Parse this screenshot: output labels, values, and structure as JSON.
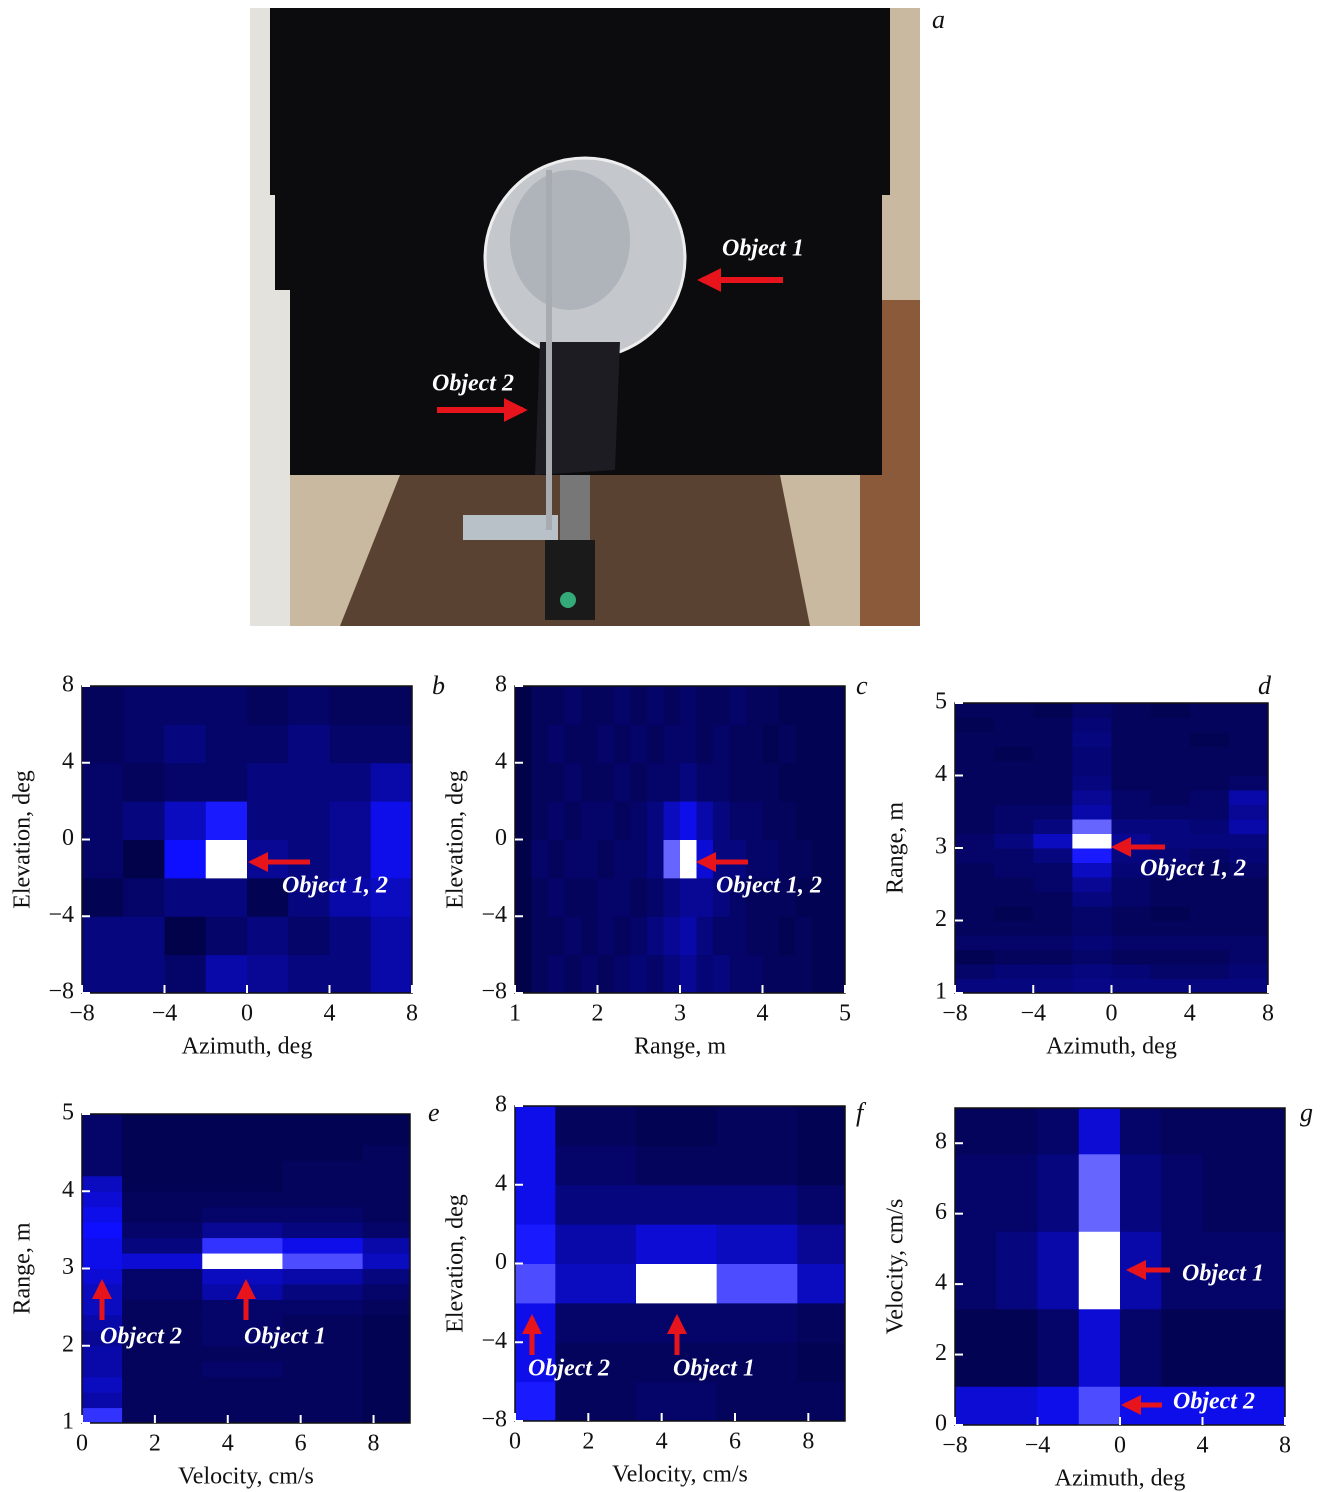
{
  "photo": {
    "label": "a",
    "annotations": [
      "Object 1",
      "Object 2"
    ]
  },
  "chart_data": [
    {
      "type": "heatmap",
      "label": "b",
      "x_label": "Azimuth, deg",
      "y_label": "Elevation, deg",
      "annotations": [
        "Object 1, 2"
      ],
      "xlim": [
        -8,
        8
      ],
      "ylim": [
        -8,
        8
      ],
      "xticks": [
        {
          "value": -8,
          "label": "−8"
        },
        {
          "value": -4,
          "label": "−4"
        },
        0,
        4,
        8
      ],
      "yticks": [
        {
          "value": -8,
          "label": "−8"
        },
        {
          "value": -4,
          "label": "−4"
        },
        0,
        4,
        8
      ],
      "x_edges": [
        -8,
        -6,
        -4,
        -2,
        0,
        2,
        4,
        6,
        8
      ],
      "y_edges": [
        -8,
        -6,
        -4,
        -2,
        0,
        2,
        4,
        6,
        8
      ],
      "z": [
        [
          0.2,
          0.2,
          0.15,
          0.3,
          0.25,
          0.2,
          0.2,
          0.3
        ],
        [
          0.2,
          0.2,
          0.08,
          0.15,
          0.2,
          0.15,
          0.2,
          0.3
        ],
        [
          0.1,
          0.15,
          0.2,
          0.2,
          0.1,
          0.2,
          0.3,
          0.35
        ],
        [
          0.15,
          0.08,
          0.5,
          1.0,
          0.25,
          0.2,
          0.25,
          0.45
        ],
        [
          0.15,
          0.2,
          0.35,
          0.55,
          0.2,
          0.2,
          0.25,
          0.45
        ],
        [
          0.15,
          0.12,
          0.15,
          0.15,
          0.2,
          0.2,
          0.2,
          0.3
        ],
        [
          0.12,
          0.15,
          0.2,
          0.15,
          0.15,
          0.2,
          0.15,
          0.15
        ],
        [
          0.12,
          0.15,
          0.15,
          0.15,
          0.12,
          0.15,
          0.12,
          0.12
        ]
      ]
    },
    {
      "type": "heatmap",
      "label": "c",
      "x_label": "Range, m",
      "y_label": "Elevation, deg",
      "annotations": [
        "Object 1, 2"
      ],
      "xlim": [
        1,
        5
      ],
      "ylim": [
        -8,
        8
      ],
      "xticks": [
        1,
        2,
        3,
        4,
        5
      ],
      "yticks": [
        {
          "value": -8,
          "label": "−8"
        },
        {
          "value": -4,
          "label": "−4"
        },
        0,
        4,
        8
      ],
      "x_edges": [
        1,
        1.2,
        1.4,
        1.6,
        1.8,
        2,
        2.2,
        2.4,
        2.6,
        2.8,
        3,
        3.2,
        3.4,
        3.6,
        3.8,
        4,
        4.2,
        4.4,
        4.6,
        4.8,
        5
      ],
      "y_edges": [
        -8,
        -6,
        -4,
        -2,
        0,
        2,
        4,
        6,
        8
      ],
      "z": [
        [
          0.08,
          0.12,
          0.15,
          0.12,
          0.15,
          0.12,
          0.15,
          0.18,
          0.15,
          0.2,
          0.25,
          0.18,
          0.2,
          0.15,
          0.15,
          0.12,
          0.12,
          0.12,
          0.1,
          0.1
        ],
        [
          0.08,
          0.12,
          0.12,
          0.15,
          0.12,
          0.15,
          0.12,
          0.15,
          0.2,
          0.25,
          0.3,
          0.2,
          0.15,
          0.15,
          0.12,
          0.12,
          0.1,
          0.12,
          0.1,
          0.1
        ],
        [
          0.08,
          0.12,
          0.15,
          0.12,
          0.12,
          0.15,
          0.15,
          0.12,
          0.15,
          0.2,
          0.25,
          0.25,
          0.2,
          0.15,
          0.12,
          0.12,
          0.12,
          0.1,
          0.1,
          0.1
        ],
        [
          0.08,
          0.15,
          0.12,
          0.15,
          0.15,
          0.12,
          0.15,
          0.15,
          0.2,
          0.7,
          1.0,
          0.4,
          0.2,
          0.2,
          0.15,
          0.15,
          0.12,
          0.12,
          0.1,
          0.1
        ],
        [
          0.08,
          0.12,
          0.15,
          0.12,
          0.15,
          0.15,
          0.12,
          0.15,
          0.2,
          0.35,
          0.45,
          0.3,
          0.2,
          0.15,
          0.15,
          0.12,
          0.12,
          0.1,
          0.1,
          0.1
        ],
        [
          0.08,
          0.12,
          0.12,
          0.15,
          0.12,
          0.12,
          0.15,
          0.12,
          0.15,
          0.15,
          0.2,
          0.15,
          0.15,
          0.12,
          0.12,
          0.12,
          0.1,
          0.1,
          0.1,
          0.1
        ],
        [
          0.08,
          0.12,
          0.15,
          0.12,
          0.12,
          0.15,
          0.12,
          0.15,
          0.12,
          0.15,
          0.15,
          0.12,
          0.15,
          0.12,
          0.12,
          0.1,
          0.12,
          0.1,
          0.1,
          0.1
        ],
        [
          0.08,
          0.12,
          0.12,
          0.15,
          0.12,
          0.12,
          0.15,
          0.12,
          0.15,
          0.12,
          0.15,
          0.12,
          0.12,
          0.15,
          0.12,
          0.12,
          0.1,
          0.1,
          0.1,
          0.1
        ]
      ]
    },
    {
      "type": "heatmap",
      "label": "d",
      "x_label": "Azimuth, deg",
      "y_label": "Range, m",
      "annotations": [
        "Object 1, 2"
      ],
      "xlim": [
        -8,
        8
      ],
      "ylim": [
        1,
        5
      ],
      "xticks": [
        {
          "value": -8,
          "label": "−8"
        },
        {
          "value": -4,
          "label": "−4"
        },
        0,
        4,
        8
      ],
      "yticks": [
        1,
        2,
        3,
        4,
        5
      ],
      "x_edges": [
        -8,
        -6,
        -4,
        -2,
        0,
        2,
        4,
        6,
        8
      ],
      "y_edges": [
        1,
        1.2,
        1.4,
        1.6,
        1.8,
        2,
        2.2,
        2.4,
        2.6,
        2.8,
        3,
        3.2,
        3.4,
        3.6,
        3.8,
        4,
        4.2,
        4.4,
        4.6,
        4.8,
        5
      ],
      "z": [
        [
          0.2,
          0.2,
          0.2,
          0.22,
          0.2,
          0.2,
          0.2,
          0.2
        ],
        [
          0.15,
          0.18,
          0.18,
          0.2,
          0.18,
          0.15,
          0.15,
          0.18
        ],
        [
          0.1,
          0.12,
          0.12,
          0.15,
          0.12,
          0.12,
          0.12,
          0.15
        ],
        [
          0.15,
          0.15,
          0.15,
          0.18,
          0.15,
          0.15,
          0.15,
          0.15
        ],
        [
          0.12,
          0.12,
          0.12,
          0.15,
          0.12,
          0.12,
          0.12,
          0.12
        ],
        [
          0.12,
          0.1,
          0.12,
          0.15,
          0.12,
          0.1,
          0.12,
          0.12
        ],
        [
          0.12,
          0.12,
          0.12,
          0.2,
          0.15,
          0.12,
          0.12,
          0.12
        ],
        [
          0.12,
          0.12,
          0.15,
          0.25,
          0.15,
          0.12,
          0.12,
          0.12
        ],
        [
          0.12,
          0.15,
          0.15,
          0.35,
          0.18,
          0.15,
          0.12,
          0.15
        ],
        [
          0.15,
          0.15,
          0.2,
          0.55,
          0.2,
          0.18,
          0.15,
          0.18
        ],
        [
          0.15,
          0.2,
          0.35,
          1.0,
          0.25,
          0.2,
          0.2,
          0.2
        ],
        [
          0.12,
          0.15,
          0.2,
          0.7,
          0.2,
          0.2,
          0.18,
          0.3
        ],
        [
          0.12,
          0.15,
          0.15,
          0.3,
          0.15,
          0.15,
          0.15,
          0.25
        ],
        [
          0.12,
          0.12,
          0.12,
          0.25,
          0.15,
          0.12,
          0.15,
          0.3
        ],
        [
          0.12,
          0.12,
          0.12,
          0.2,
          0.12,
          0.12,
          0.12,
          0.15
        ],
        [
          0.12,
          0.12,
          0.12,
          0.18,
          0.12,
          0.12,
          0.12,
          0.12
        ],
        [
          0.12,
          0.1,
          0.12,
          0.18,
          0.12,
          0.12,
          0.12,
          0.12
        ],
        [
          0.12,
          0.12,
          0.12,
          0.2,
          0.12,
          0.12,
          0.1,
          0.12
        ],
        [
          0.1,
          0.12,
          0.12,
          0.18,
          0.12,
          0.12,
          0.12,
          0.12
        ],
        [
          0.12,
          0.12,
          0.1,
          0.15,
          0.12,
          0.1,
          0.12,
          0.12
        ]
      ]
    },
    {
      "type": "heatmap",
      "label": "e",
      "x_label": "Velocity, cm/s",
      "y_label": "Range, m",
      "annotations": [
        "Object 2",
        "Object 1"
      ],
      "xlim": [
        0,
        9
      ],
      "ylim": [
        1,
        5
      ],
      "xticks": [
        0,
        2,
        4,
        6,
        8
      ],
      "yticks": [
        1,
        2,
        3,
        4,
        5
      ],
      "x_edges": [
        0,
        1.1,
        3.3,
        5.5,
        7.7,
        9
      ],
      "y_edges": [
        1,
        1.2,
        1.4,
        1.6,
        1.8,
        2,
        2.2,
        2.4,
        2.6,
        2.8,
        3,
        3.2,
        3.4,
        3.6,
        3.8,
        4,
        4.2,
        4.4,
        4.6,
        4.8,
        5
      ],
      "z": [
        [
          0.6,
          0.12,
          0.12,
          0.12,
          0.1
        ],
        [
          0.3,
          0.12,
          0.12,
          0.12,
          0.1
        ],
        [
          0.35,
          0.12,
          0.12,
          0.12,
          0.1
        ],
        [
          0.3,
          0.12,
          0.15,
          0.12,
          0.1
        ],
        [
          0.3,
          0.12,
          0.12,
          0.12,
          0.1
        ],
        [
          0.25,
          0.12,
          0.15,
          0.12,
          0.1
        ],
        [
          0.3,
          0.12,
          0.15,
          0.12,
          0.1
        ],
        [
          0.35,
          0.12,
          0.15,
          0.15,
          0.12
        ],
        [
          0.35,
          0.15,
          0.3,
          0.2,
          0.15
        ],
        [
          0.4,
          0.15,
          0.35,
          0.3,
          0.2
        ],
        [
          0.45,
          0.4,
          1.0,
          0.65,
          0.35
        ],
        [
          0.45,
          0.2,
          0.6,
          0.45,
          0.3
        ],
        [
          0.5,
          0.15,
          0.25,
          0.2,
          0.15
        ],
        [
          0.45,
          0.12,
          0.15,
          0.15,
          0.12
        ],
        [
          0.4,
          0.12,
          0.12,
          0.12,
          0.12
        ],
        [
          0.35,
          0.1,
          0.1,
          0.12,
          0.12
        ],
        [
          0.15,
          0.1,
          0.1,
          0.12,
          0.12
        ],
        [
          0.15,
          0.1,
          0.1,
          0.1,
          0.12
        ],
        [
          0.15,
          0.1,
          0.1,
          0.1,
          0.1
        ],
        [
          0.15,
          0.1,
          0.1,
          0.1,
          0.1
        ]
      ]
    },
    {
      "type": "heatmap",
      "label": "f",
      "x_label": "Velocity, cm/s",
      "y_label": "Elevation, deg",
      "annotations": [
        "Object 2",
        "Object 1"
      ],
      "xlim": [
        0,
        9
      ],
      "ylim": [
        -8,
        8
      ],
      "xticks": [
        0,
        2,
        4,
        6,
        8
      ],
      "yticks": [
        {
          "value": -8,
          "label": "−8"
        },
        {
          "value": -4,
          "label": "−4"
        },
        0,
        4,
        8
      ],
      "x_edges": [
        0,
        1.1,
        3.3,
        5.5,
        7.7,
        9
      ],
      "y_edges": [
        -8,
        -6,
        -4,
        -2,
        0,
        2,
        4,
        6,
        8
      ],
      "z": [
        [
          0.55,
          0.12,
          0.15,
          0.12,
          0.12
        ],
        [
          0.45,
          0.12,
          0.12,
          0.12,
          0.1
        ],
        [
          0.45,
          0.15,
          0.15,
          0.15,
          0.12
        ],
        [
          0.65,
          0.35,
          1.0,
          0.65,
          0.35
        ],
        [
          0.55,
          0.3,
          0.4,
          0.35,
          0.25
        ],
        [
          0.45,
          0.2,
          0.2,
          0.2,
          0.15
        ],
        [
          0.45,
          0.15,
          0.12,
          0.12,
          0.1
        ],
        [
          0.45,
          0.12,
          0.1,
          0.12,
          0.1
        ]
      ]
    },
    {
      "type": "heatmap",
      "label": "g",
      "x_label": "Azimuth, deg",
      "y_label": "Velocity, cm/s",
      "annotations": [
        "Object 1",
        "Object 2"
      ],
      "xlim": [
        -8,
        8
      ],
      "ylim": [
        0,
        9
      ],
      "xticks": [
        {
          "value": -8,
          "label": "−8"
        },
        {
          "value": -4,
          "label": "−4"
        },
        0,
        4,
        8
      ],
      "yticks": [
        0,
        2,
        4,
        6,
        8
      ],
      "x_edges": [
        -8,
        -6,
        -4,
        -2,
        0,
        2,
        4,
        6,
        8
      ],
      "y_edges": [
        0,
        1.1,
        3.3,
        5.5,
        7.7,
        9
      ],
      "z": [
        [
          0.4,
          0.4,
          0.45,
          0.65,
          0.45,
          0.45,
          0.45,
          0.45
        ],
        [
          0.1,
          0.1,
          0.15,
          0.4,
          0.15,
          0.1,
          0.1,
          0.1
        ],
        [
          0.15,
          0.2,
          0.3,
          1.0,
          0.3,
          0.15,
          0.15,
          0.15
        ],
        [
          0.15,
          0.15,
          0.2,
          0.7,
          0.2,
          0.15,
          0.12,
          0.12
        ],
        [
          0.12,
          0.12,
          0.15,
          0.4,
          0.15,
          0.12,
          0.12,
          0.12
        ]
      ]
    }
  ]
}
